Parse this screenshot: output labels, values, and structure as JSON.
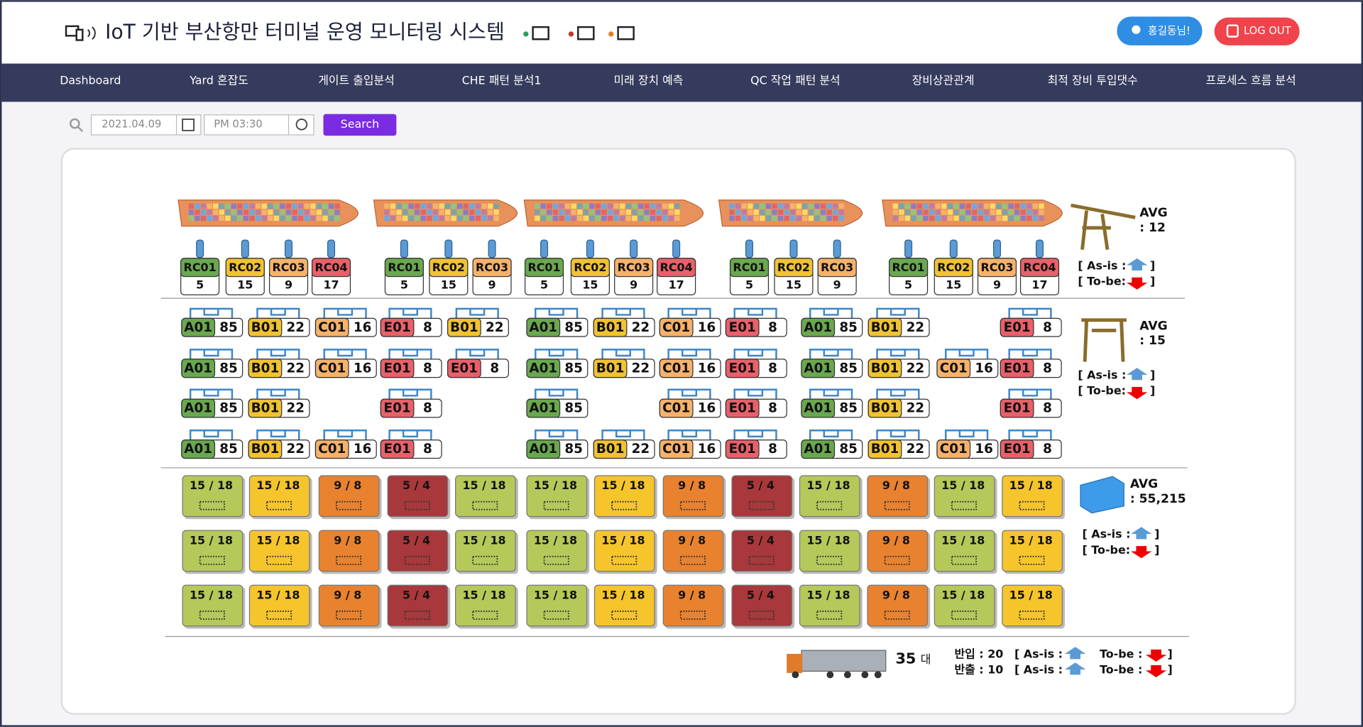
{
  "header": {
    "title": "IoT 기반 부산항만 터미널 운영 모니터링 시스템",
    "user": "홍길동님!",
    "logout": "LOG OUT"
  },
  "nav": [
    "Dashboard",
    "Yard 혼잡도",
    "게이트 출입분석",
    "CHE 패턴 분석1",
    "미래 장치 예측",
    "QC 작업 패턴 분석",
    "장비상관관계",
    "최적 장비 투입댓수",
    "프로세스 흐름 분석"
  ],
  "search": {
    "date": "2021.04.09",
    "time": "PM 03:30",
    "button": "Search"
  },
  "berths": [
    {
      "cranes": [
        {
          "label": "RC01",
          "value": "5"
        },
        {
          "label": "RC02",
          "value": "15"
        },
        {
          "label": "RC03",
          "value": "9"
        },
        {
          "label": "RC04",
          "value": "17"
        }
      ]
    },
    {
      "cranes": [
        {
          "label": "RC01",
          "value": "5"
        },
        {
          "label": "RC02",
          "value": "15"
        },
        {
          "label": "RC03",
          "value": "9"
        }
      ]
    },
    {
      "cranes": [
        {
          "label": "RC01",
          "value": "5"
        },
        {
          "label": "RC02",
          "value": "15"
        },
        {
          "label": "RC03",
          "value": "9"
        },
        {
          "label": "RC04",
          "value": "17"
        }
      ]
    },
    {
      "cranes": [
        {
          "label": "RC01",
          "value": "5"
        },
        {
          "label": "RC02",
          "value": "15"
        },
        {
          "label": "RC03",
          "value": "9"
        }
      ]
    },
    {
      "cranes": [
        {
          "label": "RC01",
          "value": "5"
        },
        {
          "label": "RC02",
          "value": "15"
        },
        {
          "label": "RC03",
          "value": "9"
        },
        {
          "label": "RC04",
          "value": "17"
        }
      ]
    }
  ],
  "qc_summary": {
    "avg_label": "AVG",
    "avg_value": ": 12",
    "asis": "[ As-is :",
    "tobe": "[ To-be:",
    "close": "]"
  },
  "yard": [
    [
      {
        "code": "A01",
        "value": "85"
      },
      {
        "code": "B01",
        "value": "22"
      },
      {
        "code": "C01",
        "value": "16"
      },
      {
        "code": "E01",
        "value": "8"
      },
      {
        "code": "B01",
        "value": "22"
      },
      {
        "code": "A01",
        "value": "85"
      },
      {
        "code": "B01",
        "value": "22"
      },
      {
        "code": "C01",
        "value": "16"
      },
      {
        "code": "E01",
        "value": "8"
      },
      {
        "code": "A01",
        "value": "85"
      },
      {
        "code": "B01",
        "value": "22"
      },
      null,
      {
        "code": "E01",
        "value": "8"
      }
    ],
    [
      {
        "code": "A01",
        "value": "85"
      },
      {
        "code": "B01",
        "value": "22"
      },
      {
        "code": "C01",
        "value": "16"
      },
      {
        "code": "E01",
        "value": "8"
      },
      {
        "code": "E01",
        "value": "8"
      },
      {
        "code": "A01",
        "value": "85"
      },
      {
        "code": "B01",
        "value": "22"
      },
      {
        "code": "C01",
        "value": "16"
      },
      {
        "code": "E01",
        "value": "8"
      },
      {
        "code": "A01",
        "value": "85"
      },
      {
        "code": "B01",
        "value": "22"
      },
      {
        "code": "C01",
        "value": "16"
      },
      {
        "code": "E01",
        "value": "8"
      }
    ],
    [
      {
        "code": "A01",
        "value": "85"
      },
      {
        "code": "B01",
        "value": "22"
      },
      null,
      {
        "code": "E01",
        "value": "8"
      },
      null,
      {
        "code": "A01",
        "value": "85"
      },
      null,
      {
        "code": "C01",
        "value": "16"
      },
      {
        "code": "E01",
        "value": "8"
      },
      {
        "code": "A01",
        "value": "85"
      },
      {
        "code": "B01",
        "value": "22"
      },
      null,
      {
        "code": "E01",
        "value": "8"
      }
    ],
    [
      {
        "code": "A01",
        "value": "85"
      },
      {
        "code": "B01",
        "value": "22"
      },
      {
        "code": "C01",
        "value": "16"
      },
      {
        "code": "E01",
        "value": "8"
      },
      null,
      {
        "code": "A01",
        "value": "85"
      },
      {
        "code": "B01",
        "value": "22"
      },
      {
        "code": "C01",
        "value": "16"
      },
      {
        "code": "E01",
        "value": "8"
      },
      {
        "code": "A01",
        "value": "85"
      },
      {
        "code": "B01",
        "value": "22"
      },
      {
        "code": "C01",
        "value": "16"
      },
      {
        "code": "E01",
        "value": "8"
      }
    ]
  ],
  "yard_summary": {
    "avg_label": "AVG",
    "avg_value": ": 15",
    "asis": "[ As-is :",
    "tobe": "[ To-be:",
    "close": "]"
  },
  "containers": [
    [
      {
        "label": "15 / 18",
        "color": "#b5c95a"
      },
      {
        "label": "15 / 18",
        "color": "#f6c52c"
      },
      {
        "label": "9 / 8",
        "color": "#e8822f"
      },
      {
        "label": "5 / 4",
        "color": "#a8383b"
      },
      {
        "label": "15 / 18",
        "color": "#b5c95a"
      },
      {
        "label": "15 / 18",
        "color": "#b5c95a"
      },
      {
        "label": "15 / 18",
        "color": "#f6c52c"
      },
      {
        "label": "9 / 8",
        "color": "#e8822f"
      },
      {
        "label": "5 / 4",
        "color": "#a8383b"
      },
      {
        "label": "15 / 18",
        "color": "#b5c95a"
      },
      {
        "label": "9 / 8",
        "color": "#e8822f"
      },
      {
        "label": "15 / 18",
        "color": "#b5c95a"
      },
      {
        "label": "15 / 18",
        "color": "#f6c52c"
      }
    ],
    [
      {
        "label": "15 / 18",
        "color": "#b5c95a"
      },
      {
        "label": "15 / 18",
        "color": "#f6c52c"
      },
      {
        "label": "9 / 8",
        "color": "#e8822f"
      },
      {
        "label": "5 / 4",
        "color": "#a8383b"
      },
      {
        "label": "15 / 18",
        "color": "#b5c95a"
      },
      {
        "label": "15 / 18",
        "color": "#b5c95a"
      },
      {
        "label": "15 / 18",
        "color": "#f6c52c"
      },
      {
        "label": "9 / 8",
        "color": "#e8822f"
      },
      {
        "label": "5 / 4",
        "color": "#a8383b"
      },
      {
        "label": "15 / 18",
        "color": "#b5c95a"
      },
      {
        "label": "9 / 8",
        "color": "#e8822f"
      },
      {
        "label": "15 / 18",
        "color": "#b5c95a"
      },
      {
        "label": "15 / 18",
        "color": "#f6c52c"
      }
    ],
    [
      {
        "label": "15 / 18",
        "color": "#b5c95a"
      },
      {
        "label": "15 / 18",
        "color": "#f6c52c"
      },
      {
        "label": "9 / 8",
        "color": "#e8822f"
      },
      {
        "label": "5 / 4",
        "color": "#a8383b"
      },
      {
        "label": "15 / 18",
        "color": "#b5c95a"
      },
      {
        "label": "15 / 18",
        "color": "#b5c95a"
      },
      {
        "label": "15 / 18",
        "color": "#f6c52c"
      },
      {
        "label": "9 / 8",
        "color": "#e8822f"
      },
      {
        "label": "5 / 4",
        "color": "#a8383b"
      },
      {
        "label": "15 / 18",
        "color": "#b5c95a"
      },
      {
        "label": "9 / 8",
        "color": "#e8822f"
      },
      {
        "label": "15 / 18",
        "color": "#b5c95a"
      },
      {
        "label": "15 / 18",
        "color": "#f6c52c"
      }
    ]
  ],
  "container_summary": {
    "avg_label": "AVG",
    "avg_value": ": 55,215",
    "asis": "[ As-is :",
    "tobe": "[ To-be:",
    "close": "]"
  },
  "gate": {
    "count": "35",
    "unit": "대",
    "rows": [
      {
        "label": "반입 : 20",
        "asis": "[ As-is :",
        "tobe": "To-be :",
        "close": "]"
      },
      {
        "label": "반출 : 10",
        "asis": "[ As-is :",
        "tobe": "To-be :",
        "close": "]"
      }
    ]
  }
}
